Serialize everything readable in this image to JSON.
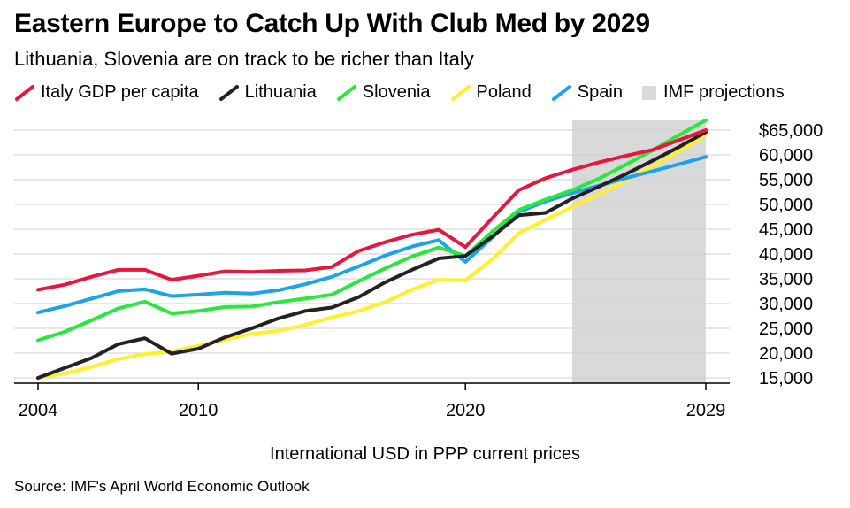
{
  "title": "Eastern Europe to Catch Up With Club Med by 2029",
  "subtitle": "Lithuania, Slovenia are on track to be richer than Italy",
  "legend": {
    "projection_label": "IMF projections",
    "projection_color": "#d9d9d9"
  },
  "x_caption": "International USD in PPP current prices",
  "source": "Source: IMF's April World Economic Outlook",
  "chart_data": {
    "type": "line",
    "title": "Eastern Europe to Catch Up With Club Med by 2029",
    "subtitle": "Lithuania, Slovenia are on track to be richer than Italy",
    "xlabel": "International USD in PPP current prices",
    "ylabel": "",
    "xlim": [
      2004,
      2029
    ],
    "ylim": [
      15000,
      65000
    ],
    "xticks": [
      2004,
      2010,
      2020,
      2029
    ],
    "xtick_labels": [
      "2004",
      "2010",
      "2020",
      "2029"
    ],
    "yticks": [
      15000,
      20000,
      25000,
      30000,
      35000,
      40000,
      45000,
      50000,
      55000,
      60000,
      65000
    ],
    "ytick_labels": [
      "15,000",
      "20,000",
      "25,000",
      "30,000",
      "35,000",
      "40,000",
      "45,000",
      "50,000",
      "55,000",
      "60,000",
      "$65,000"
    ],
    "grid": true,
    "legend_position": "top",
    "projection_range": [
      2024,
      2029
    ],
    "x": [
      2004,
      2005,
      2006,
      2007,
      2008,
      2009,
      2010,
      2011,
      2012,
      2013,
      2014,
      2015,
      2016,
      2017,
      2018,
      2019,
      2020,
      2021,
      2022,
      2023,
      2024,
      2025,
      2026,
      2027,
      2028,
      2029
    ],
    "series": [
      {
        "name": "Italy GDP per capita",
        "color": "#e8163c",
        "values": [
          32800,
          33800,
          35400,
          36800,
          36800,
          34800,
          35600,
          36500,
          36400,
          36600,
          36700,
          37400,
          40600,
          42400,
          43900,
          44900,
          41400,
          47200,
          52900,
          55300,
          57000,
          58500,
          59800,
          61000,
          63000,
          65000
        ]
      },
      {
        "name": "Lithuania",
        "color": "#222222",
        "values": [
          15000,
          17000,
          19000,
          21800,
          23000,
          19900,
          20900,
          23200,
          25000,
          27000,
          28500,
          29200,
          31300,
          34300,
          36800,
          39100,
          39600,
          43500,
          47800,
          48300,
          51200,
          53600,
          56100,
          58800,
          61600,
          64600
        ]
      },
      {
        "name": "Slovenia",
        "color": "#29e83c",
        "values": [
          22600,
          24300,
          26600,
          29000,
          30400,
          28000,
          28500,
          29300,
          29400,
          30300,
          31000,
          31800,
          34500,
          37100,
          39500,
          41300,
          39600,
          44500,
          48900,
          51000,
          52900,
          55200,
          58000,
          60900,
          64000,
          67000
        ]
      },
      {
        "name": "Poland",
        "color": "#fff02a",
        "values": [
          15000,
          15900,
          17200,
          18800,
          19800,
          20300,
          21500,
          22700,
          23900,
          24500,
          25700,
          27200,
          28500,
          30300,
          32800,
          34800,
          34700,
          38900,
          44200,
          46900,
          49500,
          52000,
          54800,
          57700,
          60700,
          64000
        ]
      },
      {
        "name": "Spain",
        "color": "#1ca3ec",
        "values": [
          28200,
          29500,
          31000,
          32500,
          32900,
          31500,
          31800,
          32200,
          32000,
          32700,
          33900,
          35400,
          37500,
          39700,
          41500,
          42800,
          38400,
          43300,
          48500,
          50600,
          52300,
          53800,
          55300,
          56700,
          58100,
          59600
        ]
      }
    ]
  }
}
